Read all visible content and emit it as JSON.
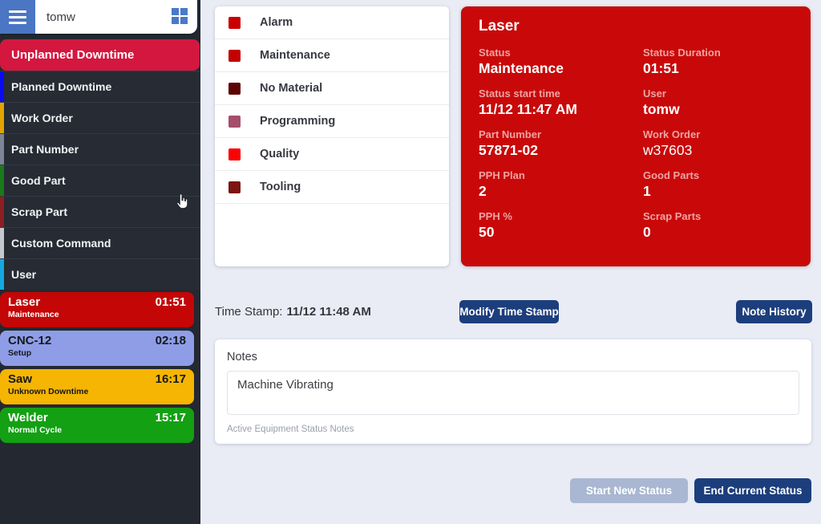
{
  "header": {
    "username": "tomw"
  },
  "sidebar": {
    "selected_command": "Unplanned Downtime",
    "menu_items": [
      {
        "label": "Planned Downtime",
        "stripe_color": "#0b0bf0"
      },
      {
        "label": "Work Order",
        "stripe_color": "#e2a400"
      },
      {
        "label": "Part Number",
        "stripe_color": "#7b8594"
      },
      {
        "label": "Good Part",
        "stripe_color": "#1b7a1b"
      },
      {
        "label": "Scrap Part",
        "stripe_color": "#8c1f1f"
      },
      {
        "label": "Custom Command",
        "stripe_color": "#c4c9d0"
      },
      {
        "label": "User",
        "stripe_color": "#16a7e0"
      }
    ],
    "machines": [
      {
        "name": "Laser",
        "time": "01:51",
        "status": "Maintenance",
        "bg": "#c40606",
        "fg": "#ffffff"
      },
      {
        "name": "CNC-12",
        "time": "02:18",
        "status": "Setup",
        "bg": "#8e9de6",
        "fg": "#15181d"
      },
      {
        "name": "Saw",
        "time": "16:17",
        "status": "Unknown Downtime",
        "bg": "#f5b502",
        "fg": "#15181d"
      },
      {
        "name": "Welder",
        "time": "15:17",
        "status": "Normal Cycle",
        "bg": "#13a013",
        "fg": "#ffffff"
      }
    ]
  },
  "status_options": [
    {
      "label": "Alarm",
      "color": "#ca0000"
    },
    {
      "label": "Maintenance",
      "color": "#c30101"
    },
    {
      "label": "No Material",
      "color": "#5c0303"
    },
    {
      "label": "Programming",
      "color": "#a54e6b"
    },
    {
      "label": "Quality",
      "color": "#fa0104"
    },
    {
      "label": "Tooling",
      "color": "#7c1414"
    }
  ],
  "detail_card": {
    "title": "Laser",
    "bg": "#c90909",
    "fields": [
      {
        "label": "Status",
        "value": "Maintenance",
        "bold": true
      },
      {
        "label": "Status Duration",
        "value": "01:51",
        "bold": true
      },
      {
        "label": "Status start time",
        "value": "11/12 11:47 AM",
        "bold": true
      },
      {
        "label": "User",
        "value": "tomw",
        "bold": true
      },
      {
        "label": "Part Number",
        "value": "57871-02",
        "bold": true
      },
      {
        "label": "Work Order",
        "value": "w37603",
        "bold": false
      },
      {
        "label": "PPH Plan",
        "value": "2",
        "bold": true
      },
      {
        "label": "Good Parts",
        "value": "1",
        "bold": true
      },
      {
        "label": "PPH %",
        "value": "50",
        "bold": true
      },
      {
        "label": "Scrap Parts",
        "value": "0",
        "bold": true
      }
    ]
  },
  "timestamp_row": {
    "label": "Time Stamp:",
    "value": "11/12 11:48 AM",
    "modify_button_label": "Modify Time Stamp",
    "note_history_button_label": "Note History"
  },
  "notes": {
    "title": "Notes",
    "value": "Machine Vibrating",
    "helper": "Active Equipment Status Notes"
  },
  "footer": {
    "start_button_label": "Start New Status",
    "end_button_label": "End Current Status"
  },
  "colors": {
    "sidebar_bg": "#232831",
    "menu_row_bg": "#262b34",
    "selected_command_bg": "#d3173e",
    "header_accent_blue": "#4a76c4",
    "main_bg": "#e9ecf5",
    "navy_button": "#1c3e7c",
    "disabled_button": "#a9b7d2"
  }
}
